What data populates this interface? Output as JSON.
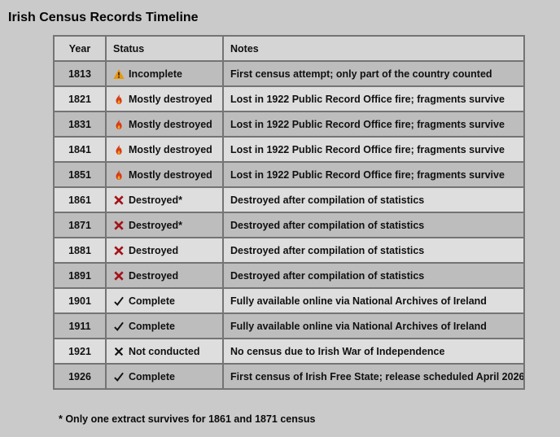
{
  "page": {
    "title": "Irish Census Records Timeline",
    "footnote": "* Only one extract survives for 1861 and 1871 census"
  },
  "colors": {
    "page_background": "#cacaca",
    "header_row": "#d5d5d5",
    "row_dark": "#bdbdbd",
    "row_light": "#dedede",
    "border": "#747474",
    "warning_icon": "#e8960c",
    "fire_icon": "#d43a16",
    "fire_icon_inner": "#f2a317",
    "x_red_icon": "#a31218",
    "check_icon": "#111111",
    "x_black_icon": "#111111"
  },
  "chart_data": {
    "type": "table",
    "title": "Irish Census Records Timeline",
    "columns": [
      "Year",
      "Status",
      "Notes"
    ],
    "rows": [
      {
        "year": "1813",
        "icon": "warning",
        "status": "Incomplete",
        "notes": "First census attempt; only part of the country counted",
        "shade": "dark"
      },
      {
        "year": "1821",
        "icon": "fire",
        "status": "Mostly destroyed",
        "notes": "Lost in 1922 Public Record Office fire; fragments survive",
        "shade": "light"
      },
      {
        "year": "1831",
        "icon": "fire",
        "status": "Mostly destroyed",
        "notes": "Lost in 1922 Public Record Office fire; fragments survive",
        "shade": "dark"
      },
      {
        "year": "1841",
        "icon": "fire",
        "status": "Mostly destroyed",
        "notes": "Lost in 1922 Public Record Office fire; fragments survive",
        "shade": "light"
      },
      {
        "year": "1851",
        "icon": "fire",
        "status": "Mostly destroyed",
        "notes": "Lost in 1922 Public Record Office fire; fragments survive",
        "shade": "dark"
      },
      {
        "year": "1861",
        "icon": "x-red",
        "status": "Destroyed*",
        "notes": "Destroyed after compilation of statistics",
        "shade": "light"
      },
      {
        "year": "1871",
        "icon": "x-red",
        "status": "Destroyed*",
        "notes": "Destroyed after compilation of statistics",
        "shade": "dark"
      },
      {
        "year": "1881",
        "icon": "x-red",
        "status": "Destroyed",
        "notes": "Destroyed after compilation of statistics",
        "shade": "light"
      },
      {
        "year": "1891",
        "icon": "x-red",
        "status": "Destroyed",
        "notes": "Destroyed after compilation of statistics",
        "shade": "dark"
      },
      {
        "year": "1901",
        "icon": "check",
        "status": "Complete",
        "notes": "Fully available online via National Archives of Ireland",
        "shade": "light"
      },
      {
        "year": "1911",
        "icon": "check",
        "status": "Complete",
        "notes": "Fully available online via National Archives of Ireland",
        "shade": "dark"
      },
      {
        "year": "1921",
        "icon": "x-black",
        "status": "Not conducted",
        "notes": "No census due to Irish War of Independence",
        "shade": "light"
      },
      {
        "year": "1926",
        "icon": "check",
        "status": "Complete",
        "notes": "First census of Irish Free State; release scheduled April 2026",
        "shade": "dark"
      }
    ]
  }
}
